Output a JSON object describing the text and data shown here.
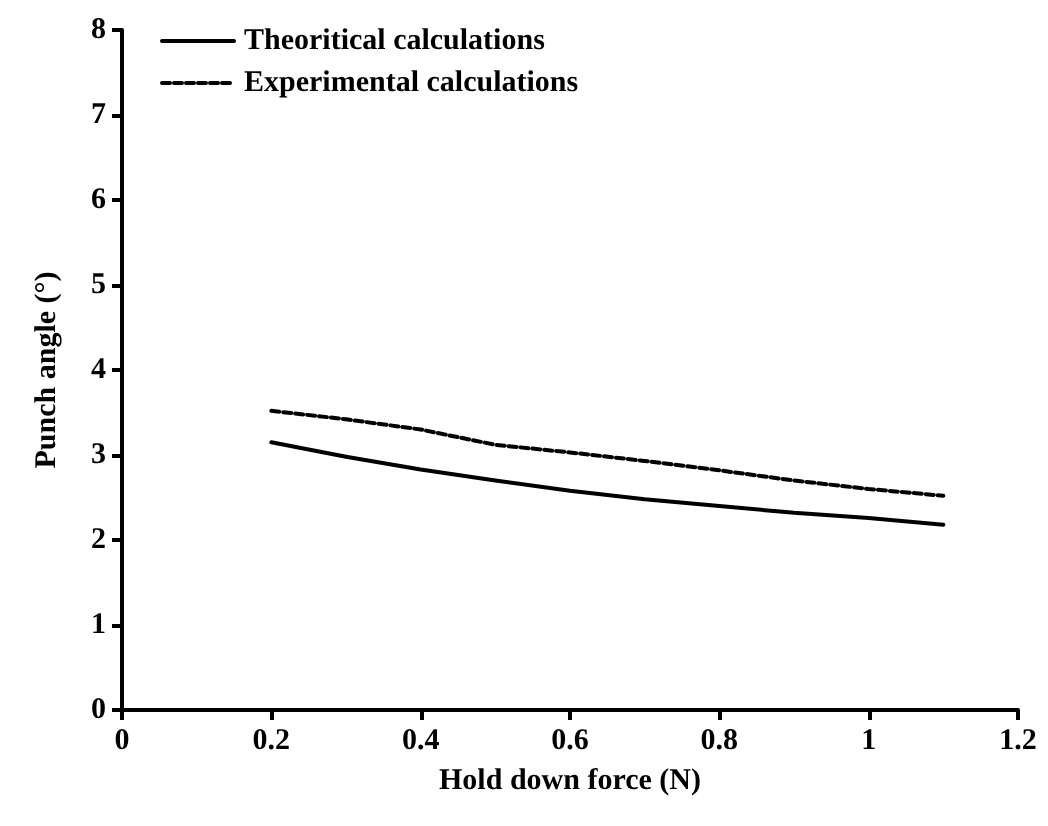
{
  "chart_data": {
    "type": "line",
    "xlabel": "Hold down force (N)",
    "ylabel": "Punch angle (°)",
    "x": [
      0.2,
      0.3,
      0.4,
      0.5,
      0.6,
      0.7,
      0.8,
      0.9,
      1.0,
      1.1
    ],
    "series": [
      {
        "name": "Theoritical calculations",
        "color": "#000000",
        "line_style": "solid",
        "values": [
          3.15,
          2.98,
          2.83,
          2.7,
          2.58,
          2.48,
          2.4,
          2.32,
          2.26,
          2.18
        ]
      },
      {
        "name": "Experimental calculations",
        "color": "#000000",
        "line_style": "dashed",
        "values": [
          3.52,
          3.42,
          3.3,
          3.12,
          3.03,
          2.93,
          2.82,
          2.7,
          2.6,
          2.52
        ]
      }
    ],
    "xlim": [
      0,
      1.2
    ],
    "xticks": [
      0,
      0.2,
      0.4,
      0.6,
      0.8,
      1,
      1.2
    ],
    "ylim": [
      0,
      8
    ],
    "yticks": [
      0,
      1,
      2,
      3,
      4,
      5,
      6,
      7,
      8
    ],
    "grid": false,
    "legend": "top left",
    "marker": "none"
  }
}
